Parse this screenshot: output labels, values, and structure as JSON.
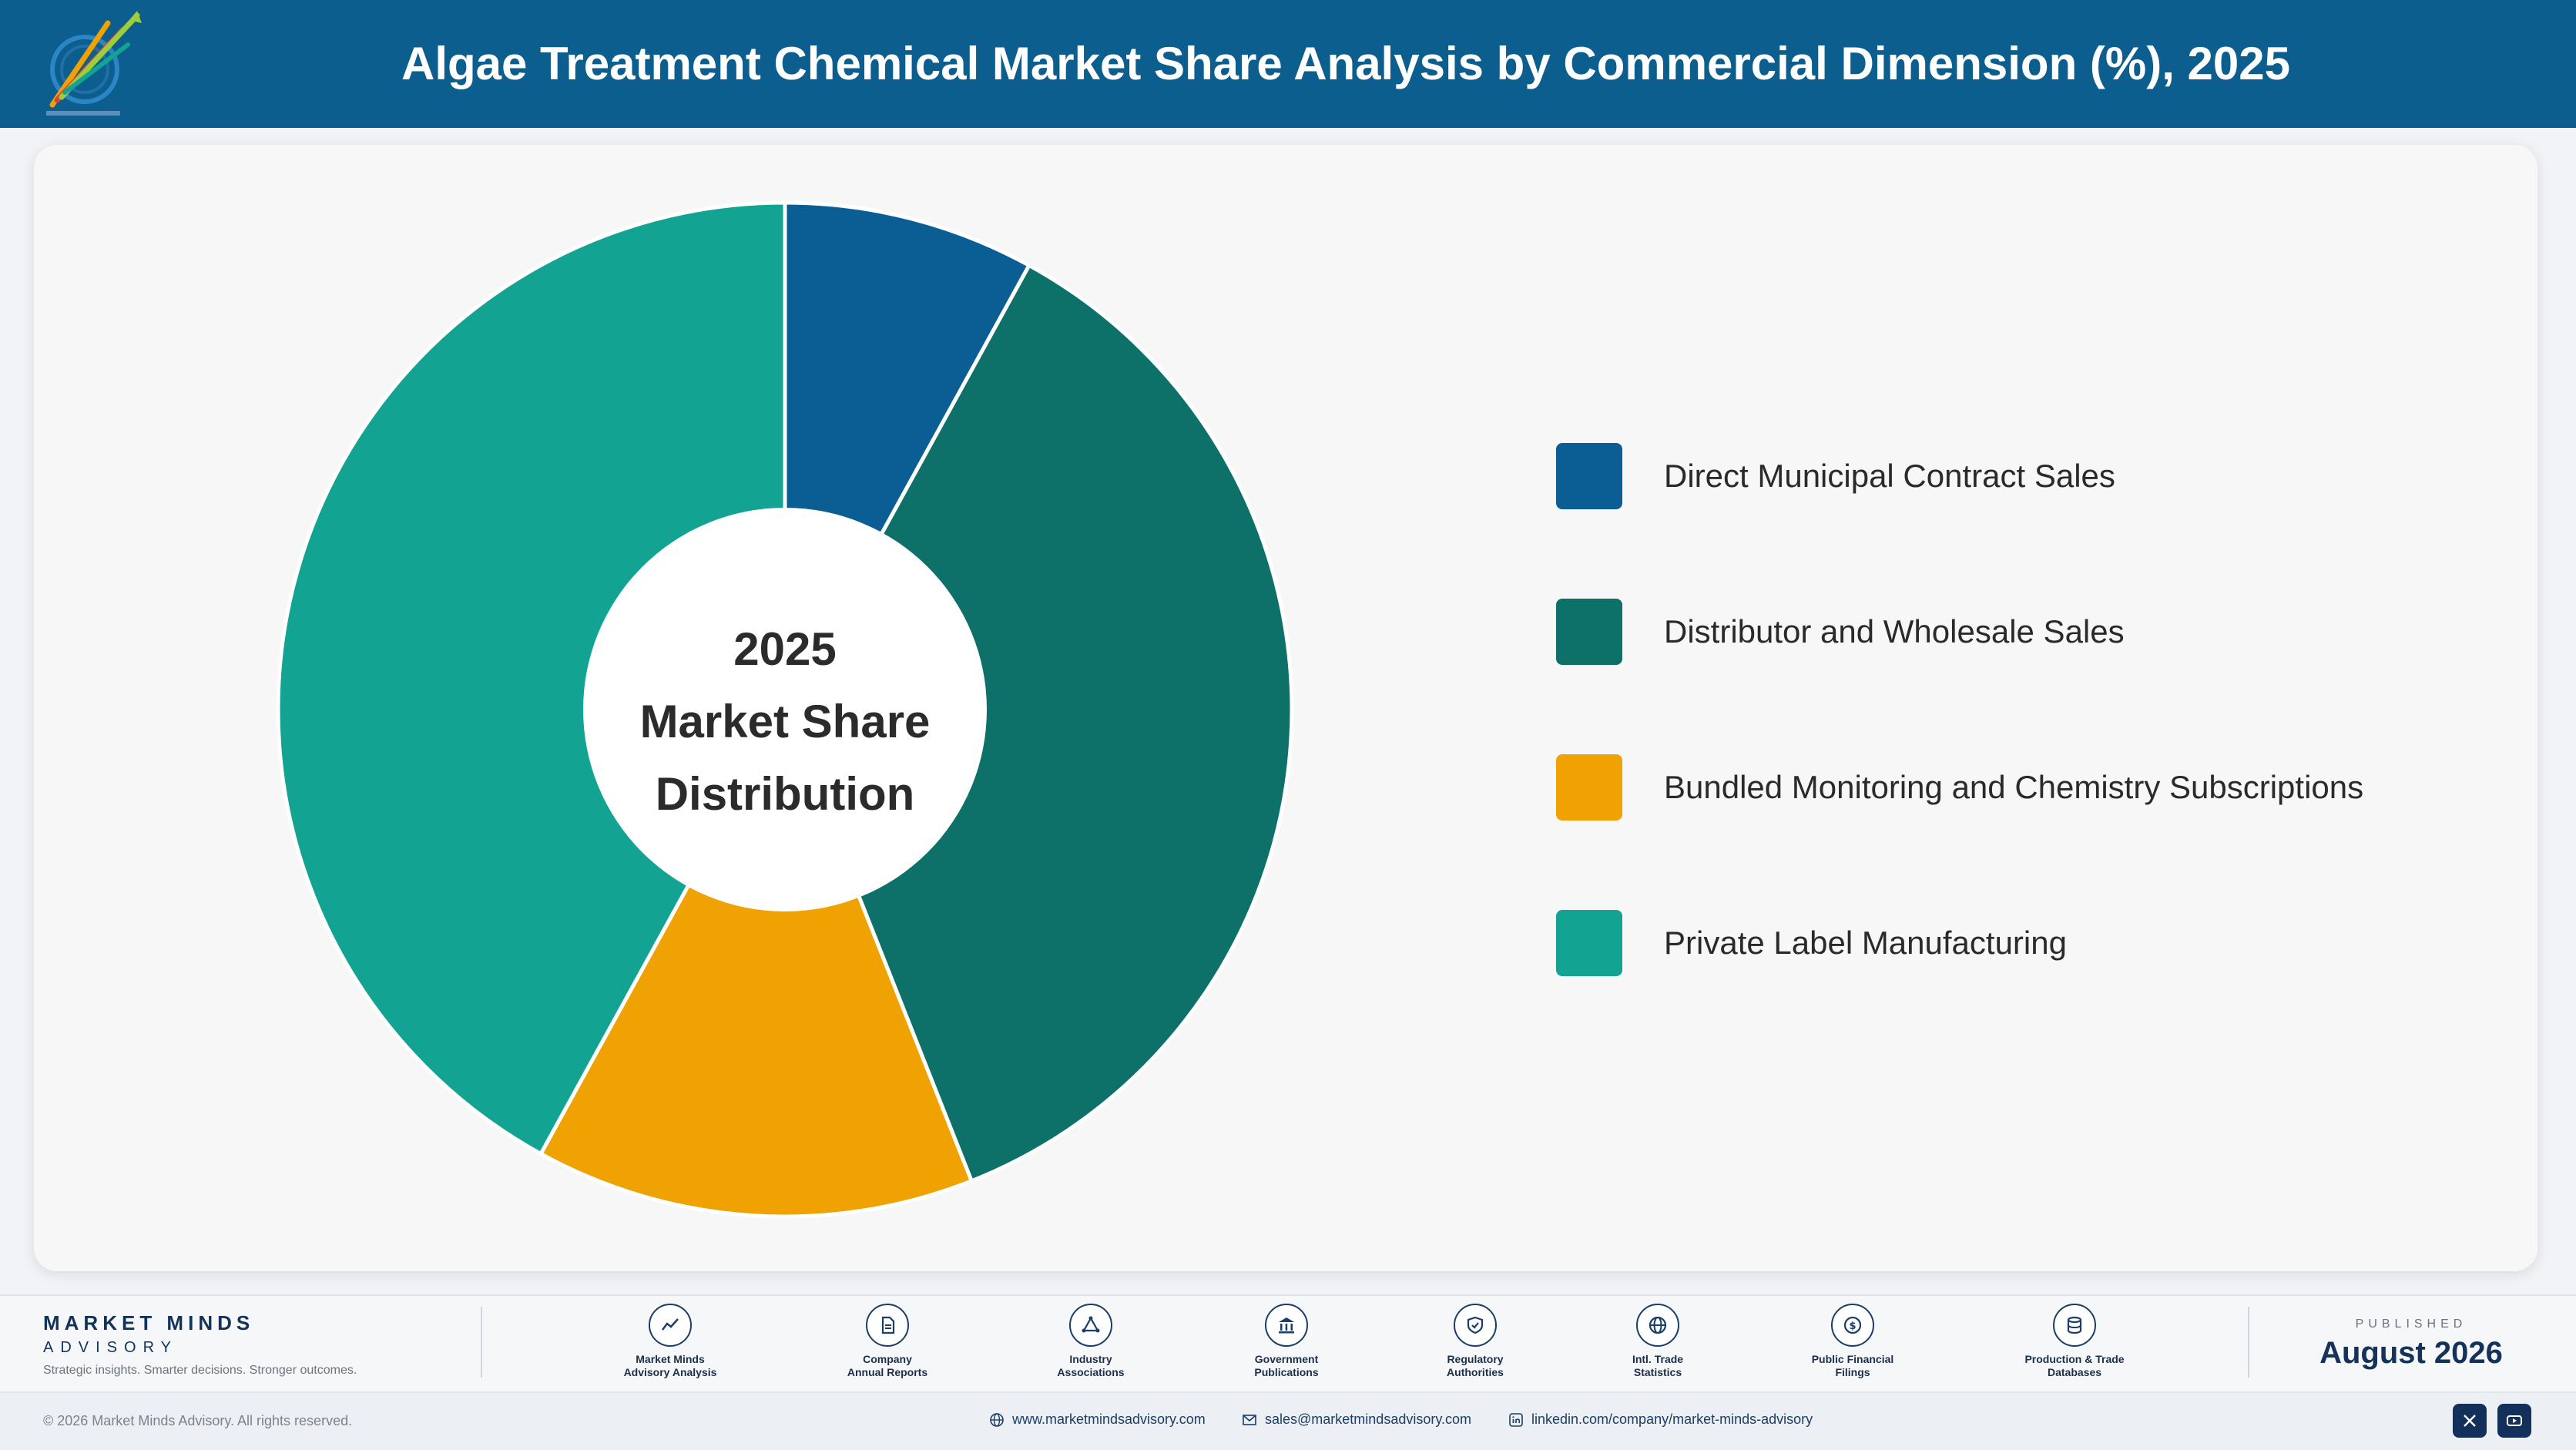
{
  "header": {
    "title": "Algae Treatment Chemical Market Share Analysis by Commercial Dimension (%), 2025"
  },
  "chart_data": {
    "type": "pie",
    "variant": "donut",
    "title": "Algae Treatment Chemical Market Share Analysis by Commercial Dimension (%), 2025",
    "center_label": [
      "2025",
      "Market Share",
      "Distribution"
    ],
    "categories": [
      "Direct Municipal Contract Sales",
      "Distributor and Wholesale Sales",
      "Bundled Monitoring and Chemistry Subscriptions",
      "Private Label Manufacturing"
    ],
    "values": [
      8,
      36,
      14,
      42
    ],
    "unit": "%",
    "colors": [
      "#0b5e93",
      "#0d7169",
      "#f0a202",
      "#12a392"
    ],
    "legend_position": "right"
  },
  "footer": {
    "brand_name": "MARKET MINDS",
    "brand_sub": "ADVISORY",
    "tagline": "Strategic insights. Smarter decisions. Stronger outcomes.",
    "sources": [
      {
        "icon": "trend-chart-icon",
        "line1": "Market Minds",
        "line2": "Advisory Analysis"
      },
      {
        "icon": "document-icon",
        "line1": "Company",
        "line2": "Annual Reports"
      },
      {
        "icon": "network-icon",
        "line1": "Industry",
        "line2": "Associations"
      },
      {
        "icon": "government-building-icon",
        "line1": "Government",
        "line2": "Publications"
      },
      {
        "icon": "shield-check-icon",
        "line1": "Regulatory",
        "line2": "Authorities"
      },
      {
        "icon": "globe-icon",
        "line1": "Intl. Trade",
        "line2": "Statistics"
      },
      {
        "icon": "dollar-coin-icon",
        "line1": "Public Financial",
        "line2": "Filings"
      },
      {
        "icon": "database-icon",
        "line1": "Production & Trade",
        "line2": "Databases"
      }
    ],
    "published_label": "PUBLISHED",
    "published_date": "August 2026"
  },
  "bottom_bar": {
    "copyright": "© 2026 Market Minds Advisory. All rights reserved.",
    "website": "www.marketmindsadvisory.com",
    "email": "sales@marketmindsadvisory.com",
    "linkedin": "linkedin.com/company/market-minds-advisory"
  }
}
